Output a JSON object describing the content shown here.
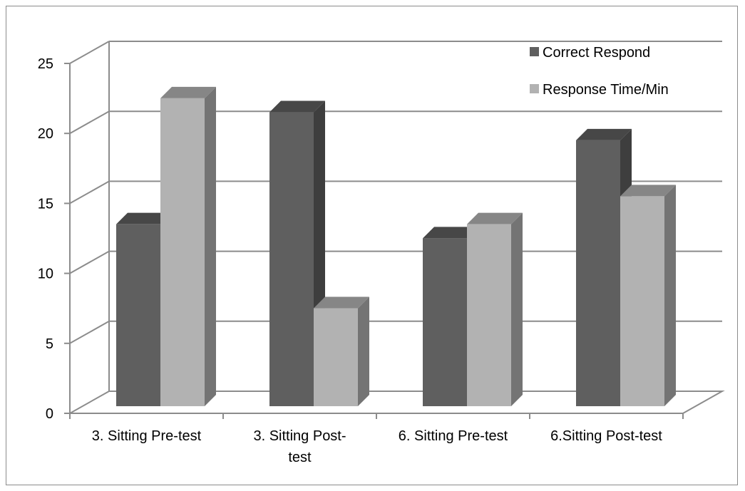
{
  "chart_data": {
    "type": "bar",
    "style": "3d-clustered-column",
    "categories": [
      "3. Sitting Pre-test",
      "3. Sitting Post-test",
      "6. Sitting Pre-test",
      "6.Sitting Post-test"
    ],
    "category_label_lines": [
      [
        "3. Sitting Pre-test"
      ],
      [
        "3. Sitting Post-",
        "test"
      ],
      [
        "6. Sitting Pre-test"
      ],
      [
        "6.Sitting Post-test"
      ]
    ],
    "series": [
      {
        "name": "Correct Respond",
        "values": [
          13,
          21,
          12,
          19
        ],
        "color": "#5f5f5f"
      },
      {
        "name": "Response Time/Min",
        "values": [
          22,
          7,
          13,
          15
        ],
        "color": "#b2b2b2"
      }
    ],
    "ylim": [
      0,
      25
    ],
    "yticks": [
      "0",
      "5",
      "10",
      "15",
      "20",
      "25"
    ],
    "grid": true,
    "legend": "top-right",
    "title": "",
    "xlabel": "",
    "ylabel": ""
  }
}
